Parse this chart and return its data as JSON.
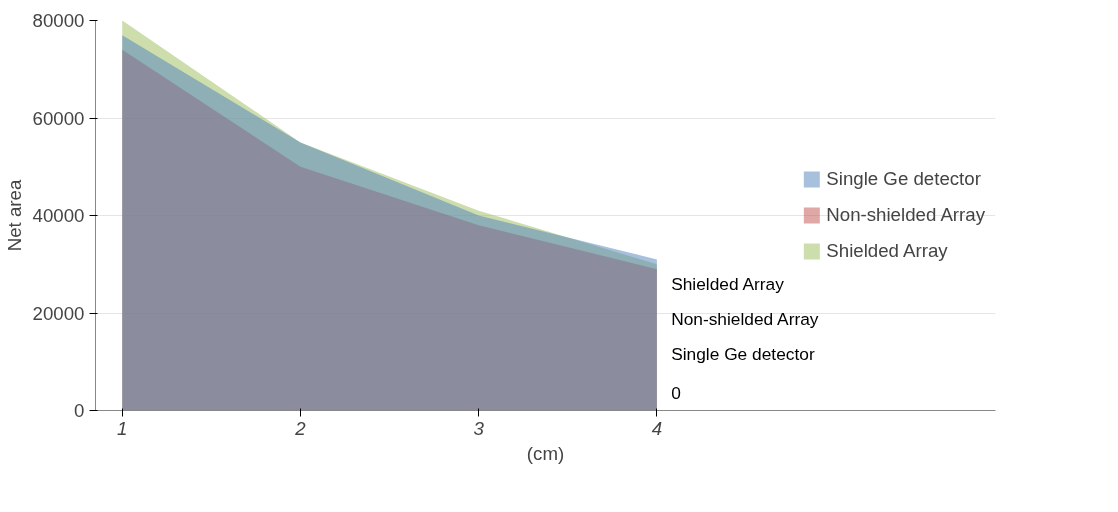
{
  "chart_data": {
    "type": "area",
    "xlabel": "(cm)",
    "ylabel": "Net area",
    "categories": [
      "1",
      "2",
      "3",
      "4"
    ],
    "series": [
      {
        "name": "Single Ge detector",
        "color": "#4f81bd",
        "values": [
          77000,
          55000,
          40000,
          31000
        ]
      },
      {
        "name": "Non-shielded Array",
        "color": "#c0504d",
        "values": [
          74000,
          50000,
          38000,
          29000
        ]
      },
      {
        "name": "Shielded Array",
        "color": "#9bbb59",
        "values": [
          80000,
          55000,
          41000,
          30000
        ]
      }
    ],
    "ylim": [
      0,
      80000
    ],
    "yticks": [
      0,
      20000,
      40000,
      60000,
      80000
    ],
    "grid": "y",
    "legend": "right",
    "annotations": [
      "Shielded Array",
      "Non-shielded Array",
      "Single Ge detector",
      "0"
    ]
  }
}
